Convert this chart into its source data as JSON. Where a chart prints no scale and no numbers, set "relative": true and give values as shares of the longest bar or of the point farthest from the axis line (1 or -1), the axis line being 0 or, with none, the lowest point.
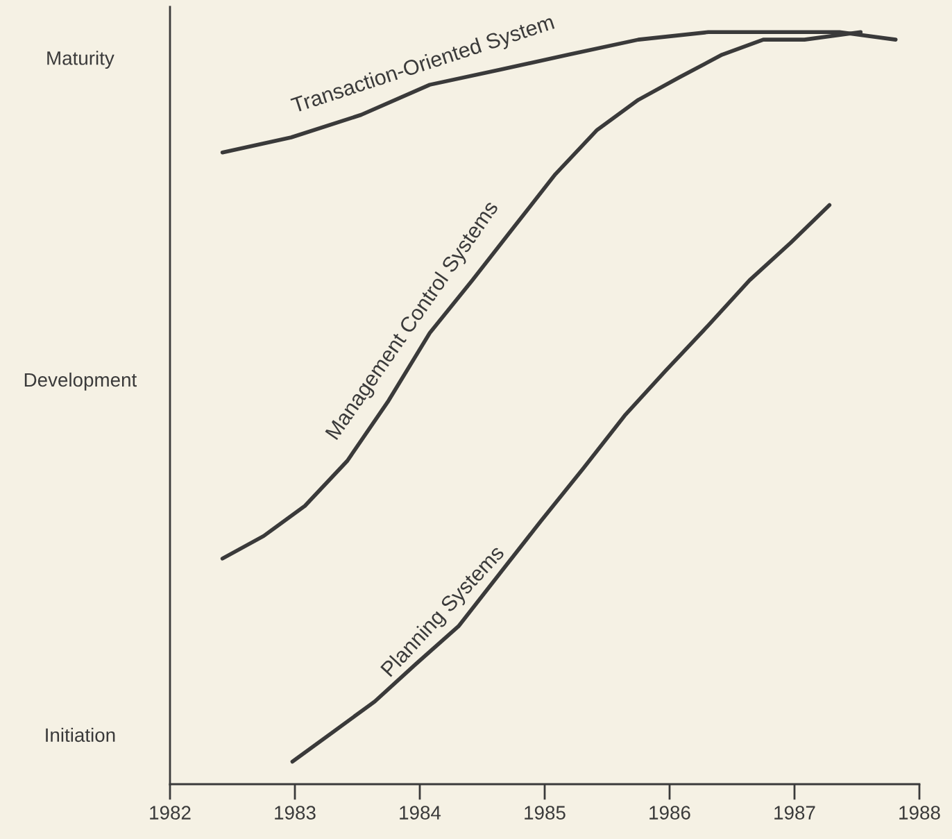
{
  "chart_data": {
    "type": "line",
    "relative": true,
    "xlim": [
      1982,
      1988
    ],
    "xticks": [
      1982,
      1983,
      1984,
      1985,
      1986,
      1987,
      1988
    ],
    "annotations": [
      "Initiation",
      "Development",
      "Maturity"
    ],
    "grid": false,
    "legend": false,
    "marker": "none",
    "line_style": "solid",
    "series": [
      {
        "name": "Transaction-Oriented System",
        "color": "#3a3a3a",
        "x": [
          1982.42,
          1982.97,
          1983.53,
          1984.08,
          1984.64,
          1985.19,
          1985.75,
          1986.31,
          1986.86,
          1987.36,
          1987.81
        ],
        "values": [
          0.84,
          0.86,
          0.89,
          0.93,
          0.95,
          0.97,
          0.99,
          1.0,
          1.0,
          1.0,
          0.99
        ]
      },
      {
        "name": "Management Control Systems",
        "color": "#3a3a3a",
        "x": [
          1982.42,
          1982.75,
          1983.08,
          1983.42,
          1983.75,
          1984.08,
          1984.42,
          1984.75,
          1985.08,
          1985.42,
          1985.75,
          1986.08,
          1986.42,
          1986.75,
          1987.08,
          1987.53
        ],
        "values": [
          0.3,
          0.33,
          0.37,
          0.43,
          0.51,
          0.6,
          0.67,
          0.74,
          0.81,
          0.87,
          0.91,
          0.94,
          0.97,
          0.99,
          0.99,
          1.0
        ]
      },
      {
        "name": "Planning Systems",
        "color": "#3a3a3a",
        "x": [
          1982.98,
          1983.31,
          1983.64,
          1983.97,
          1984.31,
          1984.64,
          1984.97,
          1985.31,
          1985.64,
          1985.97,
          1986.31,
          1986.64,
          1986.97,
          1987.28
        ],
        "values": [
          0.03,
          0.07,
          0.11,
          0.16,
          0.21,
          0.28,
          0.35,
          0.42,
          0.49,
          0.55,
          0.61,
          0.67,
          0.72,
          0.77
        ]
      }
    ]
  }
}
